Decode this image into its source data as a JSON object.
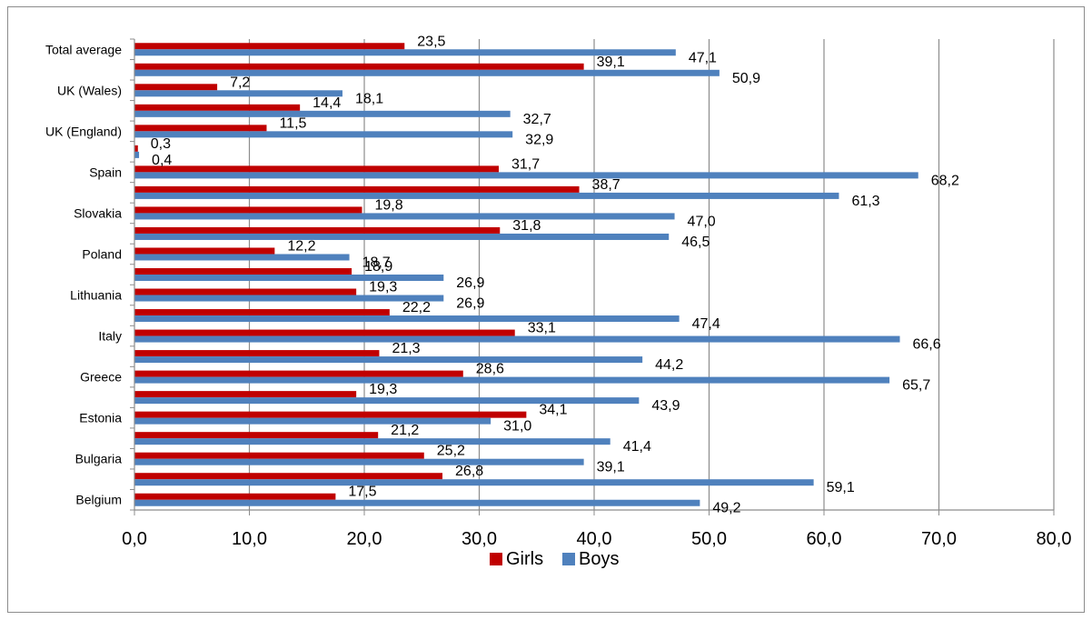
{
  "chart_data": {
    "type": "bar",
    "orientation": "horizontal",
    "title": "",
    "xlabel": "",
    "ylabel": "",
    "xlim": [
      0,
      80
    ],
    "x_ticks": [
      "0,0",
      "10,0",
      "20,0",
      "30,0",
      "40,0",
      "50,0",
      "60,0",
      "70,0",
      "80,0"
    ],
    "grid": "vertical",
    "legend_position": "bottom",
    "category_labels": [
      "Belgium",
      "",
      "Bulgaria",
      "",
      "Estonia",
      "",
      "Greece",
      "",
      "Italy",
      "",
      "Lithuania",
      "",
      "Poland",
      "",
      "Slovakia",
      "",
      "Spain",
      "",
      "UK (England)",
      "",
      "UK (Wales)",
      "",
      "Total average"
    ],
    "series": [
      {
        "name": "Girls",
        "color": "#c00000",
        "values": [
          17.5,
          26.8,
          25.2,
          21.2,
          34.1,
          19.3,
          28.6,
          21.3,
          33.1,
          22.2,
          19.3,
          18.9,
          12.2,
          31.8,
          19.8,
          38.7,
          31.7,
          0.3,
          11.5,
          14.4,
          7.2,
          39.1,
          23.5
        ],
        "labels": [
          "17,5",
          "26,8",
          "25,2",
          "21,2",
          "34,1",
          "19,3",
          "28,6",
          "21,3",
          "33,1",
          "22,2",
          "19,3",
          "18,9",
          "12,2",
          "31,8",
          "19,8",
          "38,7",
          "31,7",
          "0,3",
          "11,5",
          "14,4",
          "7,2",
          "39,1",
          "23,5"
        ]
      },
      {
        "name": "Boys",
        "color": "#4f81bd",
        "values": [
          49.2,
          59.1,
          39.1,
          41.4,
          31.0,
          43.9,
          65.7,
          44.2,
          66.6,
          47.4,
          26.9,
          26.9,
          18.7,
          46.5,
          47.0,
          61.3,
          68.2,
          0.4,
          32.9,
          32.7,
          18.1,
          50.9,
          47.1
        ],
        "labels": [
          "49,2",
          "59,1",
          "39,1",
          "41,4",
          "31,0",
          "43,9",
          "65,7",
          "44,2",
          "66,6",
          "47,4",
          "26,9",
          "26,9",
          "18,7",
          "46,5",
          "47,0",
          "61,3",
          "68,2",
          "0,4",
          "32,9",
          "32,7",
          "18,1",
          "50,9",
          "47,1"
        ]
      }
    ]
  }
}
